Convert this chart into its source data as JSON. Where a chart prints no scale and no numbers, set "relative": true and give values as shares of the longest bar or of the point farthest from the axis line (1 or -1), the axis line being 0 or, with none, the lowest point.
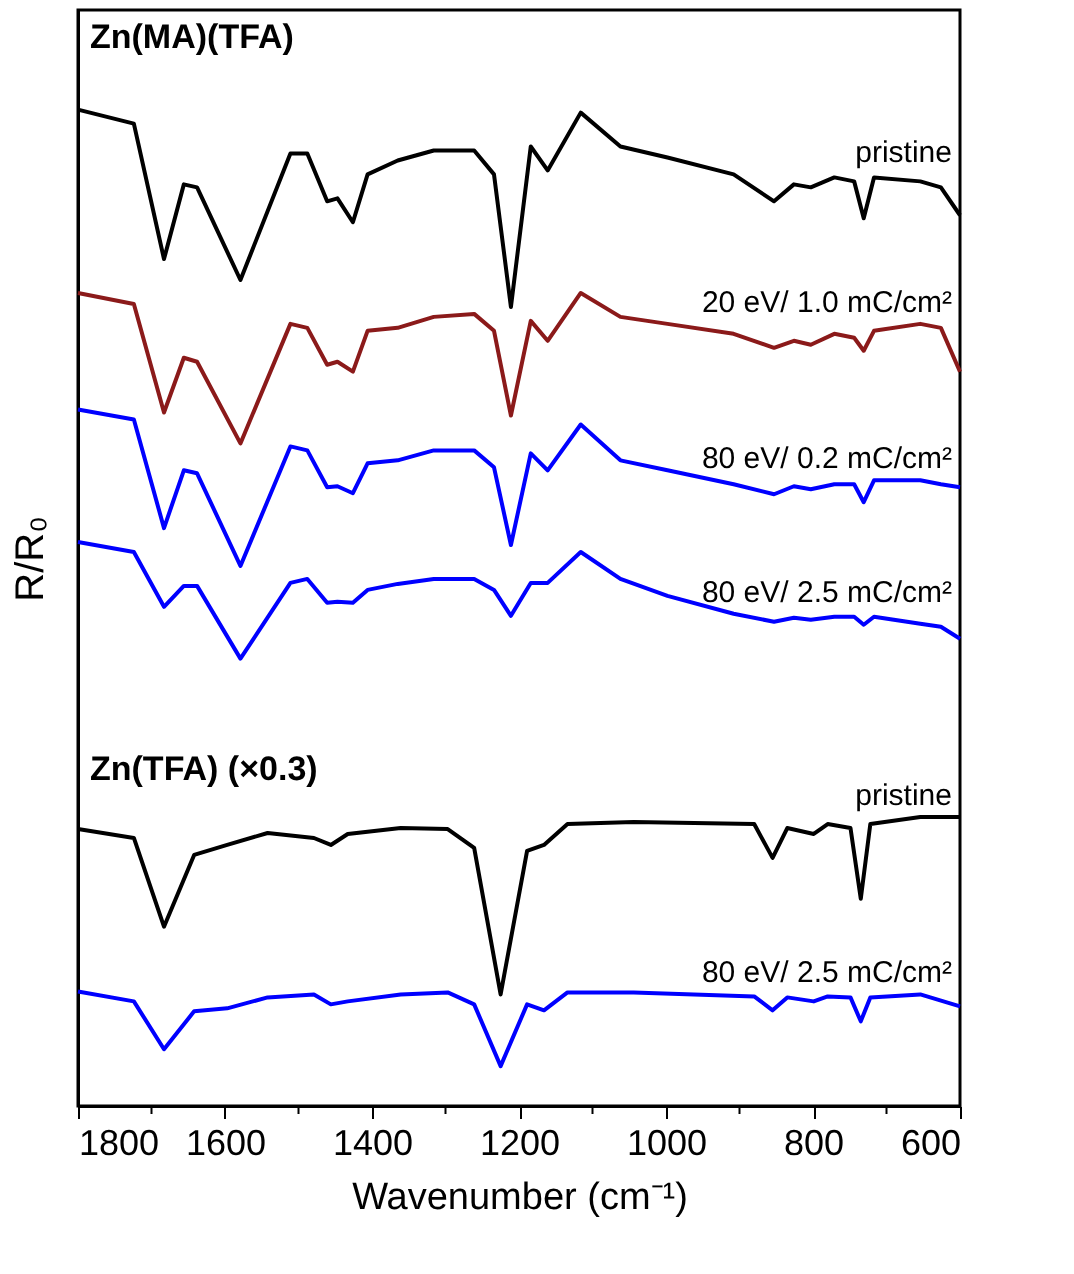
{
  "chart_data": {
    "type": "line",
    "relative": true,
    "xlabel": "Wavenumber (cm⁻¹)",
    "ylabel": "R/R₀",
    "xlim": [
      1800,
      600
    ],
    "xticks": [
      1800,
      {
        "value": 1700,
        "label": null
      },
      1600,
      {
        "value": 1500,
        "label": null
      },
      1400,
      {
        "value": 1300,
        "label": null
      },
      1200,
      {
        "value": 1100,
        "label": null
      },
      1000,
      {
        "value": 900,
        "label": null
      },
      800,
      {
        "value": 700,
        "label": null
      },
      600
    ],
    "annotations": [
      "Zn(MA)(TFA)",
      "Zn(TFA) (×0.3)"
    ],
    "grid": false,
    "legend": false,
    "line_style": "solid",
    "marker": "none",
    "x": [
      1800,
      1724,
      1683,
      1656,
      1638,
      1579,
      1511,
      1488,
      1461,
      1447,
      1426,
      1406,
      1365,
      1316,
      1261,
      1234,
      1211,
      1184,
      1161,
      1116,
      1062,
      998,
      908,
      853,
      826,
      803,
      771,
      744,
      731,
      717,
      654,
      626,
      600
    ],
    "series": [
      {
        "name": "pristine",
        "color": "#000000",
        "values": [
          1.0,
          0.986,
          0.85,
          0.925,
          0.922,
          0.829,
          0.956,
          0.956,
          0.908,
          0.911,
          0.887,
          0.935,
          0.949,
          0.959,
          0.959,
          0.935,
          0.802,
          0.963,
          0.939,
          0.997,
          0.963,
          0.952,
          0.935,
          0.908,
          0.925,
          0.922,
          0.932,
          0.928,
          0.891,
          0.932,
          0.928,
          0.922,
          0.894
        ]
      },
      {
        "name": "20 eV/ 1.0 mC/cm²",
        "color": "#8b1a1a",
        "values": [
          0.816,
          0.805,
          0.696,
          0.751,
          0.747,
          0.665,
          0.785,
          0.781,
          0.744,
          0.747,
          0.737,
          0.778,
          0.781,
          0.792,
          0.795,
          0.778,
          0.693,
          0.788,
          0.768,
          0.816,
          0.792,
          0.785,
          0.775,
          0.761,
          0.768,
          0.764,
          0.775,
          0.771,
          0.758,
          0.778,
          0.785,
          0.781,
          0.737
        ]
      },
      {
        "name": "80 eV/ 0.2 mC/cm²",
        "color": "#0000ff",
        "values": [
          0.699,
          0.689,
          0.58,
          0.638,
          0.635,
          0.542,
          0.662,
          0.658,
          0.621,
          0.622,
          0.615,
          0.645,
          0.648,
          0.658,
          0.658,
          0.641,
          0.563,
          0.655,
          0.638,
          0.684,
          0.648,
          0.638,
          0.624,
          0.614,
          0.622,
          0.619,
          0.624,
          0.624,
          0.606,
          0.628,
          0.628,
          0.624,
          0.621
        ]
      },
      {
        "name": "80 eV/ 2.5 mC/cm²",
        "color": "#0000ff",
        "values": [
          0.566,
          0.556,
          0.501,
          0.522,
          0.522,
          0.449,
          0.525,
          0.529,
          0.505,
          0.506,
          0.505,
          0.518,
          0.524,
          0.529,
          0.529,
          0.518,
          0.492,
          0.525,
          0.525,
          0.556,
          0.529,
          0.512,
          0.494,
          0.486,
          0.49,
          0.488,
          0.491,
          0.491,
          0.483,
          0.491,
          0.484,
          0.481,
          0.469
        ]
      },
      {
        "name": "pristine",
        "color": "#000000",
        "x": [
          1800,
          1724,
          1683,
          1642,
          1597,
          1542,
          1479,
          1456,
          1433,
          1361,
          1297,
          1261,
          1225,
          1189,
          1166,
          1134,
          1044,
          880,
          855,
          835,
          799,
          780,
          749,
          735,
          722,
          654,
          600
        ],
        "values": [
          0.278,
          0.269,
          0.18,
          0.252,
          0.262,
          0.274,
          0.269,
          0.262,
          0.273,
          0.279,
          0.278,
          0.259,
          0.112,
          0.256,
          0.262,
          0.283,
          0.285,
          0.283,
          0.249,
          0.279,
          0.273,
          0.283,
          0.279,
          0.208,
          0.283,
          0.29,
          0.29
        ]
      },
      {
        "name": "80 eV/ 2.5 mC/cm²",
        "color": "#0000ff",
        "x": [
          1800,
          1724,
          1683,
          1642,
          1597,
          1542,
          1479,
          1456,
          1433,
          1361,
          1297,
          1261,
          1225,
          1189,
          1166,
          1134,
          1044,
          880,
          855,
          835,
          799,
          780,
          749,
          735,
          722,
          654,
          600
        ],
        "values": [
          0.115,
          0.105,
          0.057,
          0.095,
          0.098,
          0.109,
          0.112,
          0.102,
          0.105,
          0.112,
          0.114,
          0.102,
          0.04,
          0.102,
          0.096,
          0.114,
          0.114,
          0.11,
          0.096,
          0.109,
          0.105,
          0.11,
          0.109,
          0.085,
          0.109,
          0.112,
          0.1
        ]
      }
    ]
  }
}
